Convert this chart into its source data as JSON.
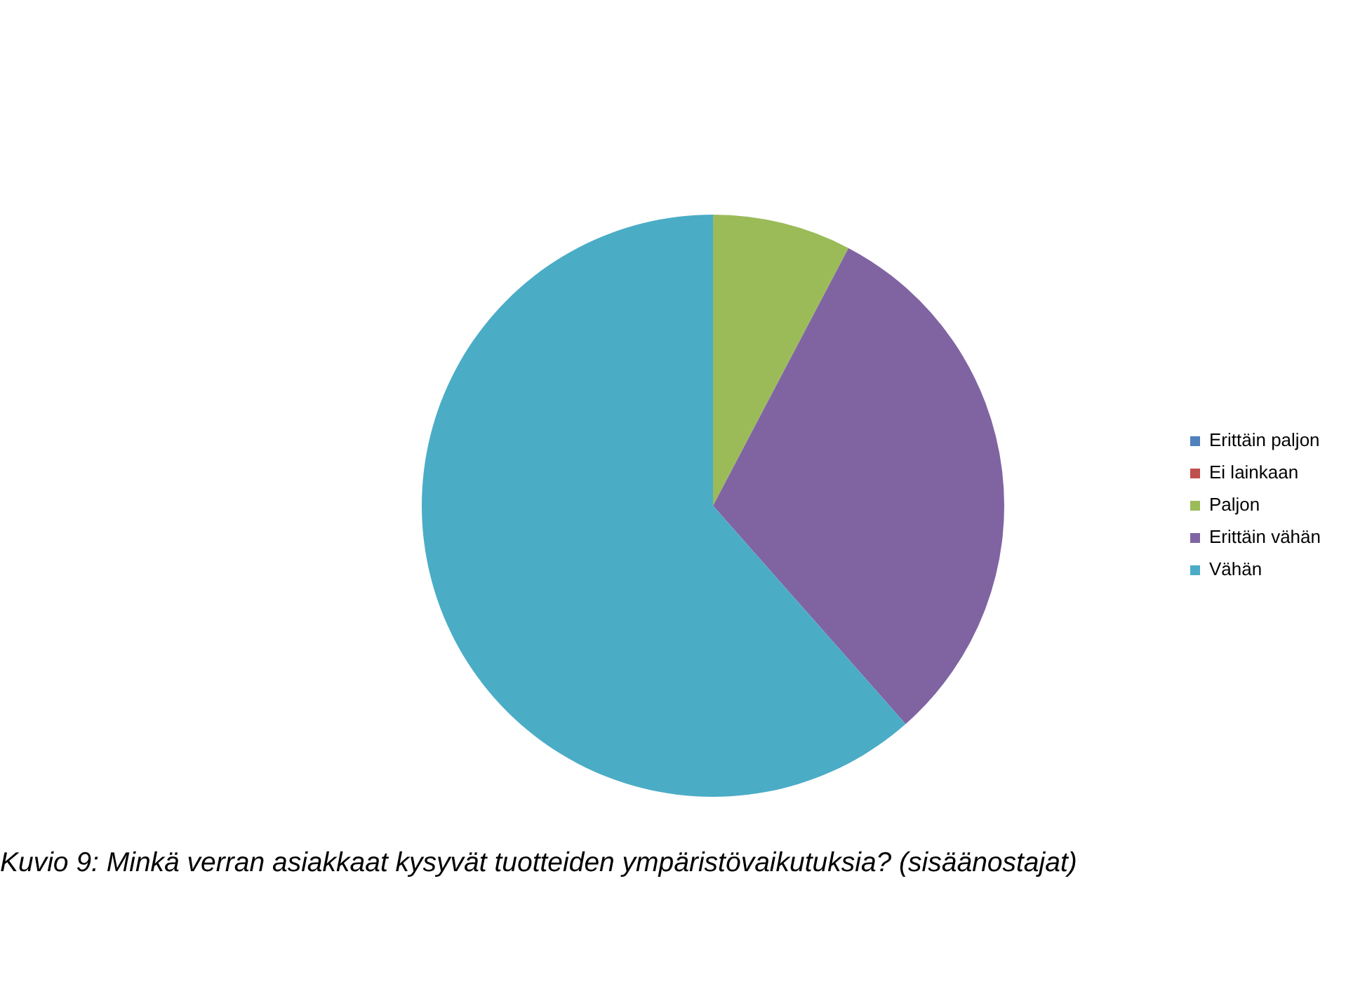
{
  "chart_data": {
    "type": "pie",
    "title": "Kuvio 9: Minkä verran asiakkaat kysyvät tuotteiden ympäristövaikutuksia? (sisäänostajat)",
    "categories": [
      "Erittäin paljon",
      "Ei lainkaan",
      "Paljon",
      "Erittäin vähän",
      "Vähän"
    ],
    "values": [
      0,
      0,
      7.7,
      30.8,
      61.5
    ],
    "colors": [
      "#4f81bd",
      "#c0504d",
      "#9bbb59",
      "#8064a2",
      "#4bacc6"
    ],
    "legend": "right"
  }
}
